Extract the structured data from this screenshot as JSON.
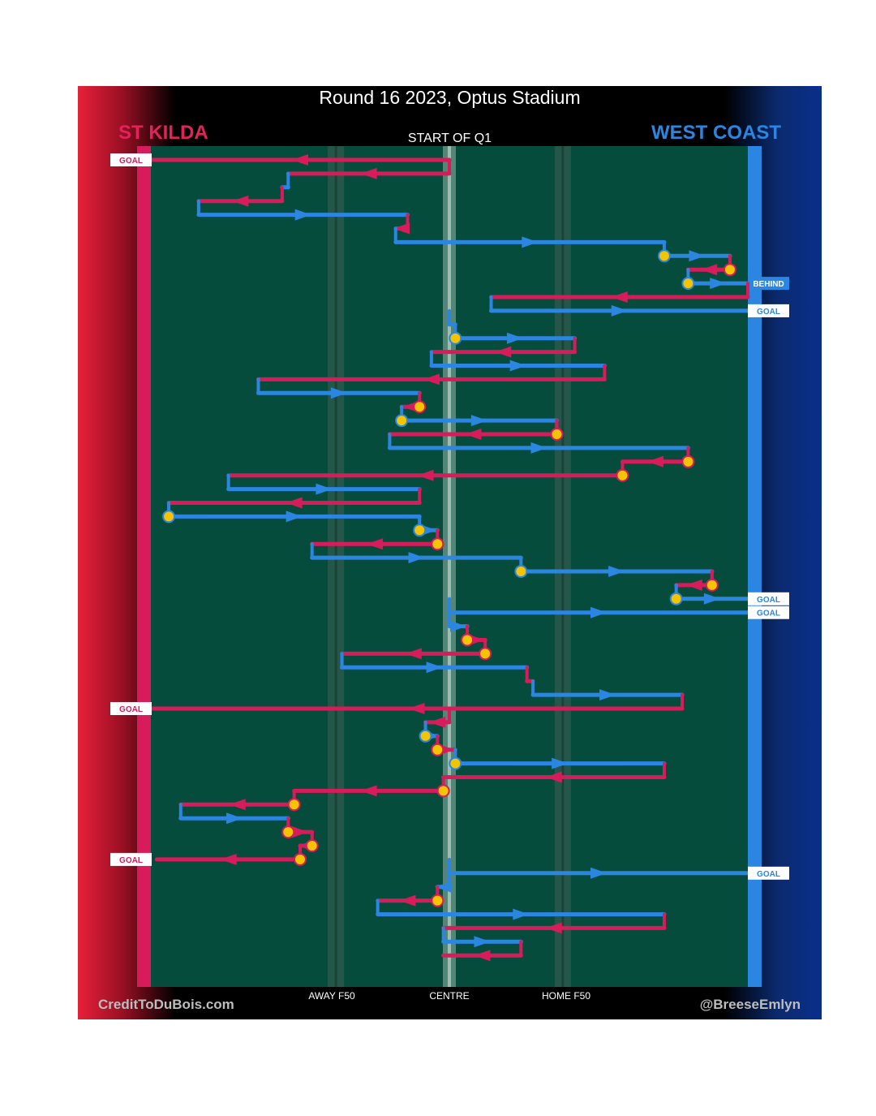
{
  "title": "Round 16 2023, Optus Stadium",
  "teams": {
    "home": {
      "name": "ST KILDA",
      "color": "#e0245a"
    },
    "away": {
      "name": "WEST COAST",
      "color": "#2a86e0"
    }
  },
  "quarter_label": "START OF Q1",
  "footer": {
    "left": "CreditToDuBois.com",
    "right": "@BreeseEmlyn"
  },
  "axis_labels": {
    "away_f50": "AWAY F50",
    "centre": "CENTRE",
    "home_f50": "HOME F50"
  },
  "chart_data": {
    "type": "possession-flow",
    "title": "Round 16 2023, Optus Stadium",
    "x_axis": {
      "min": 0,
      "max": 100,
      "left_goal": "ST KILDA",
      "right_goal": "WEST COAST",
      "ticks": [
        {
          "label": "AWAY F50",
          "x": 31
        },
        {
          "label": "CENTRE",
          "x": 50
        },
        {
          "label": "HOME F50",
          "x": 69
        }
      ]
    },
    "colors": {
      "st_kilda": "#d81b5a",
      "west_coast": "#2a86e0",
      "stoppage": "#f5c400",
      "field": "#054c3c"
    },
    "chains": [
      {
        "team": "SK",
        "from": 50,
        "to": 0,
        "end": "GOAL"
      },
      {
        "team": "SK",
        "from": 50,
        "to": 23,
        "end": "turnover"
      },
      {
        "team": "WC",
        "from": 23,
        "to": 22,
        "end": "turnover"
      },
      {
        "team": "SK",
        "from": 22,
        "to": 8,
        "end": "turnover"
      },
      {
        "team": "WC",
        "from": 8,
        "to": 43,
        "end": "turnover"
      },
      {
        "team": "SK",
        "from": 43,
        "to": 41,
        "end": "turnover"
      },
      {
        "team": "WC",
        "from": 41,
        "to": 86,
        "end": "stoppage"
      },
      {
        "team": "WC",
        "from": 86,
        "to": 97,
        "end": "stoppage"
      },
      {
        "team": "SK",
        "from": 97,
        "to": 90,
        "end": "stoppage"
      },
      {
        "team": "WC",
        "from": 90,
        "to": 100,
        "end": "BEHIND"
      },
      {
        "team": "SK",
        "from": 100,
        "to": 57,
        "end": "turnover"
      },
      {
        "team": "WC",
        "from": 57,
        "to": 100,
        "end": "GOAL"
      },
      {
        "team": "WC",
        "from": 50,
        "to": 51,
        "end": "stoppage"
      },
      {
        "team": "WC",
        "from": 51,
        "to": 71,
        "end": "turnover"
      },
      {
        "team": "SK",
        "from": 71,
        "to": 47,
        "end": "turnover"
      },
      {
        "team": "WC",
        "from": 47,
        "to": 76,
        "end": "turnover"
      },
      {
        "team": "SK",
        "from": 76,
        "to": 18,
        "end": "turnover"
      },
      {
        "team": "WC",
        "from": 18,
        "to": 45,
        "end": "stoppage"
      },
      {
        "team": "SK",
        "from": 45,
        "to": 42,
        "end": "stoppage"
      },
      {
        "team": "WC",
        "from": 42,
        "to": 68,
        "end": "stoppage"
      },
      {
        "team": "SK",
        "from": 68,
        "to": 40,
        "end": "turnover"
      },
      {
        "team": "WC",
        "from": 40,
        "to": 90,
        "end": "stoppage"
      },
      {
        "team": "SK",
        "from": 90,
        "to": 79,
        "end": "stoppage"
      },
      {
        "team": "SK",
        "from": 79,
        "to": 13,
        "end": "turnover"
      },
      {
        "team": "WC",
        "from": 13,
        "to": 45,
        "end": "turnover"
      },
      {
        "team": "SK",
        "from": 45,
        "to": 3,
        "end": "stoppage"
      },
      {
        "team": "WC",
        "from": 3,
        "to": 45,
        "end": "stoppage"
      },
      {
        "team": "WC",
        "from": 45,
        "to": 48,
        "end": "stoppage"
      },
      {
        "team": "SK",
        "from": 48,
        "to": 27,
        "end": "turnover"
      },
      {
        "team": "WC",
        "from": 27,
        "to": 62,
        "end": "stoppage"
      },
      {
        "team": "WC",
        "from": 62,
        "to": 94,
        "end": "stoppage"
      },
      {
        "team": "SK",
        "from": 94,
        "to": 88,
        "end": "stoppage"
      },
      {
        "team": "WC",
        "from": 88,
        "to": 100,
        "end": "GOAL"
      },
      {
        "team": "WC",
        "from": 50,
        "to": 100,
        "end": "GOAL"
      },
      {
        "team": "WC",
        "from": 50,
        "to": 53,
        "end": "stoppage"
      },
      {
        "team": "SK",
        "from": 53,
        "to": 56,
        "end": "stoppage"
      },
      {
        "team": "SK",
        "from": 56,
        "to": 32,
        "end": "turnover"
      },
      {
        "team": "WC",
        "from": 32,
        "to": 63,
        "end": "turnover"
      },
      {
        "team": "SK",
        "from": 63,
        "to": 64,
        "end": "turnover"
      },
      {
        "team": "WC",
        "from": 64,
        "to": 89,
        "end": "turnover"
      },
      {
        "team": "SK",
        "from": 89,
        "to": 0,
        "end": "GOAL"
      },
      {
        "team": "SK",
        "from": 50,
        "to": 46,
        "end": "stoppage"
      },
      {
        "team": "WC",
        "from": 46,
        "to": 48,
        "end": "stoppage"
      },
      {
        "team": "SK",
        "from": 48,
        "to": 51,
        "end": "stoppage"
      },
      {
        "team": "WC",
        "from": 51,
        "to": 86,
        "end": "turnover"
      },
      {
        "team": "SK",
        "from": 86,
        "to": 49,
        "end": "stoppage"
      },
      {
        "team": "SK",
        "from": 49,
        "to": 24,
        "end": "stoppage"
      },
      {
        "team": "SK",
        "from": 24,
        "to": 5,
        "end": "turnover"
      },
      {
        "team": "WC",
        "from": 5,
        "to": 23,
        "end": "stoppage"
      },
      {
        "team": "SK",
        "from": 23,
        "to": 27,
        "end": "stoppage"
      },
      {
        "team": "SK",
        "from": 27,
        "to": 25,
        "end": "stoppage"
      },
      {
        "team": "SK",
        "from": 25,
        "to": 1,
        "end": "GOAL"
      },
      {
        "team": "WC",
        "from": 50,
        "to": 100,
        "end": "GOAL"
      },
      {
        "team": "WC",
        "from": 50,
        "to": 48,
        "end": "stoppage"
      },
      {
        "team": "SK",
        "from": 48,
        "to": 38,
        "end": "turnover"
      },
      {
        "team": "WC",
        "from": 38,
        "to": 86,
        "end": "turnover"
      },
      {
        "team": "SK",
        "from": 86,
        "to": 49,
        "end": "turnover"
      },
      {
        "team": "WC",
        "from": 49,
        "to": 62,
        "end": "turnover"
      },
      {
        "team": "SK",
        "from": 62,
        "to": 49,
        "end": "end"
      }
    ]
  }
}
